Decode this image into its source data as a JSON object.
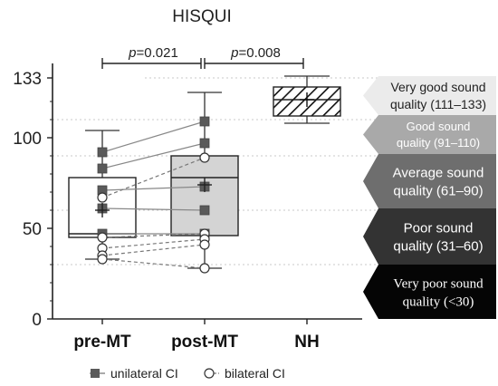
{
  "chart_data": {
    "type": "box",
    "title": "HISQUI",
    "yticks": [
      0,
      50,
      100,
      133
    ],
    "ylim": [
      0,
      140
    ],
    "categories": [
      "pre-MT",
      "post-MT",
      "NH"
    ],
    "boxes": [
      {
        "category": "pre-MT",
        "min": 33,
        "q1": 45,
        "median": 47,
        "q3": 78,
        "max": 104,
        "mean": 60,
        "fill": "#ffffff"
      },
      {
        "category": "post-MT",
        "min": 28,
        "q1": 46,
        "median": 78,
        "q3": 90,
        "max": 125,
        "mean": 74,
        "fill": "#d4d4d4"
      },
      {
        "category": "NH",
        "min": 108,
        "q1": 112,
        "median": 121,
        "q3": 128,
        "max": 134,
        "mean": 121,
        "fill": "hatched"
      }
    ],
    "comparisons": [
      {
        "from": "pre-MT",
        "to": "post-MT",
        "label": "p=0.021"
      },
      {
        "from": "post-MT",
        "to": "NH",
        "label": "p=0.008"
      }
    ],
    "series": [
      {
        "name": "unilateral CI",
        "marker": "filled-square",
        "pre": [
          92,
          83,
          71,
          61,
          47
        ],
        "post": [
          109,
          97,
          73,
          60,
          47
        ]
      },
      {
        "name": "bilateral CI",
        "marker": "open-circle",
        "pre": [
          67,
          45,
          39,
          35,
          33
        ],
        "post": [
          89,
          47,
          44,
          41,
          28
        ]
      }
    ],
    "quality_bands": [
      {
        "label": "Very good sound quality (111–133)",
        "lines": [
          "Very good sound",
          "quality (111–133)"
        ],
        "fill": "#ebebeb",
        "text_color": "#222222"
      },
      {
        "label": "Good sound quality (91–110)",
        "lines": [
          "Good sound",
          "quality (91–110)"
        ],
        "fill": "#a9a9a9",
        "text_color": "#ffffff"
      },
      {
        "label": "Average sound quality (61–90)",
        "lines": [
          "Average sound",
          "quality (61–90)"
        ],
        "fill": "#6e6e6e",
        "text_color": "#ffffff"
      },
      {
        "label": "Poor sound quality (31–60)",
        "lines": [
          "Poor sound",
          "quality (31–60)"
        ],
        "fill": "#333333",
        "text_color": "#ffffff"
      },
      {
        "label": "Very poor sound quality (<30)",
        "lines": [
          "Very poor sound",
          "quality (<30)"
        ],
        "fill": "#050505",
        "text_color": "#ffffff"
      }
    ],
    "band_edges": [
      30,
      60,
      90,
      110
    ],
    "legend": {
      "position": "bottom",
      "items": [
        "unilateral CI",
        "bilateral CI"
      ]
    },
    "colors": {
      "axis": "#222222",
      "whisker": "#333333",
      "unilateral_marker": "#5a5a5a",
      "unilateral_line": "#888888",
      "bilateral_line": "#777777",
      "gridline": "#c8c8c8"
    }
  }
}
